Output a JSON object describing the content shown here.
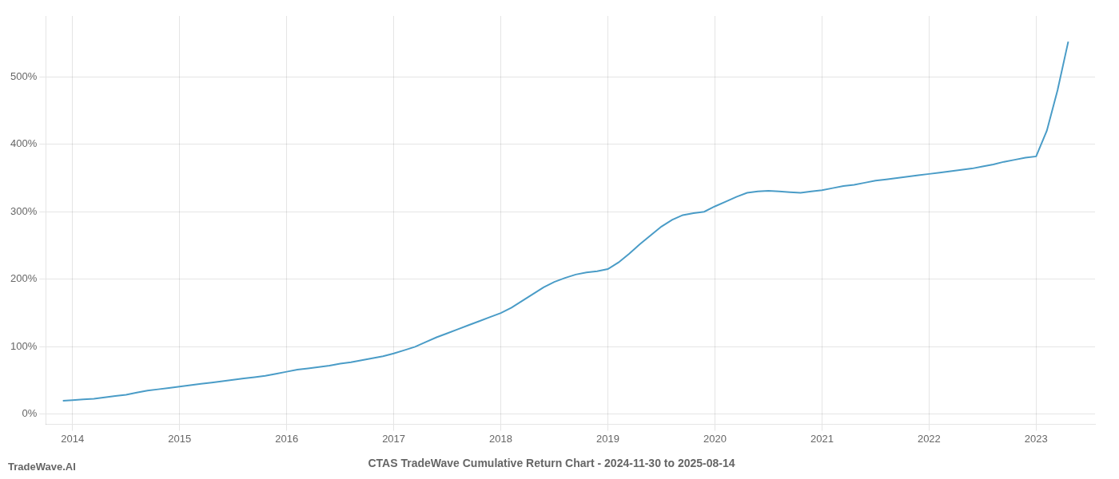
{
  "chart_data": {
    "type": "line",
    "title": "CTAS TradeWave Cumulative Return Chart - 2024-11-30 to 2025-08-14",
    "annotations": [
      "TradeWave.AI"
    ],
    "x": [
      2013.91,
      2014.0,
      2014.1,
      2014.2,
      2014.3,
      2014.4,
      2014.5,
      2014.6,
      2014.7,
      2014.8,
      2014.9,
      2015.0,
      2015.1,
      2015.2,
      2015.3,
      2015.4,
      2015.5,
      2015.6,
      2015.7,
      2015.8,
      2015.9,
      2016.0,
      2016.1,
      2016.2,
      2016.3,
      2016.4,
      2016.5,
      2016.6,
      2016.7,
      2016.8,
      2016.9,
      2017.0,
      2017.1,
      2017.2,
      2017.3,
      2017.4,
      2017.5,
      2017.6,
      2017.7,
      2017.8,
      2017.9,
      2018.0,
      2018.1,
      2018.2,
      2018.3,
      2018.4,
      2018.5,
      2018.6,
      2018.7,
      2018.8,
      2018.9,
      2019.0,
      2019.1,
      2019.2,
      2019.3,
      2019.4,
      2019.5,
      2019.6,
      2019.7,
      2019.8,
      2019.9,
      2020.0,
      2020.1,
      2020.2,
      2020.3,
      2020.4,
      2020.5,
      2020.6,
      2020.7,
      2020.8,
      2020.9,
      2021.0,
      2021.1,
      2021.2,
      2021.3,
      2021.4,
      2021.5,
      2021.6,
      2021.7,
      2021.8,
      2021.9,
      2022.0,
      2022.1,
      2022.2,
      2022.3,
      2022.4,
      2022.5,
      2022.6,
      2022.7,
      2022.8,
      2022.9,
      2023.0,
      2023.1,
      2023.2,
      2023.3
    ],
    "values": [
      20,
      21,
      22,
      23,
      25,
      27,
      29,
      32,
      35,
      37,
      39,
      41,
      43,
      45,
      47,
      49,
      51,
      53,
      55,
      57,
      60,
      63,
      66,
      68,
      70,
      72,
      75,
      77,
      80,
      83,
      86,
      90,
      95,
      100,
      107,
      114,
      120,
      126,
      132,
      138,
      144,
      150,
      158,
      168,
      178,
      188,
      196,
      202,
      207,
      210,
      212,
      215,
      225,
      238,
      252,
      265,
      278,
      288,
      295,
      298,
      300,
      308,
      315,
      322,
      328,
      330,
      331,
      330,
      329,
      328,
      330,
      332,
      335,
      338,
      340,
      343,
      346,
      348,
      350,
      352,
      354,
      356,
      358,
      360,
      362,
      364,
      367,
      370,
      374,
      377,
      380,
      382,
      420,
      480,
      552
    ],
    "color": "#4a9cc7",
    "xlim": [
      2013.75,
      2023.55
    ],
    "xticks": [
      2014,
      2015,
      2016,
      2017,
      2018,
      2019,
      2020,
      2021,
      2022,
      2023
    ],
    "ylim": [
      -15,
      590
    ],
    "yticks": [
      {
        "value": 0,
        "label": "0%"
      },
      {
        "value": 100,
        "label": "100%"
      },
      {
        "value": 200,
        "label": "200%"
      },
      {
        "value": 300,
        "label": "300%"
      },
      {
        "value": 400,
        "label": "400%"
      },
      {
        "value": 500,
        "label": "500%"
      }
    ],
    "grid": true
  }
}
